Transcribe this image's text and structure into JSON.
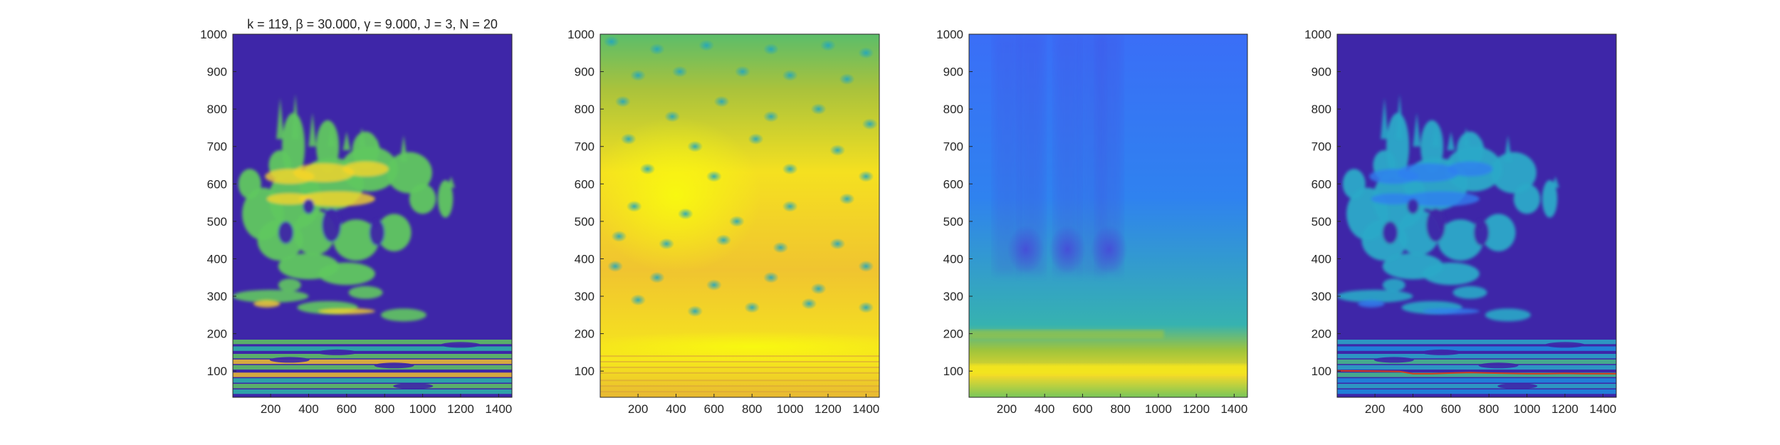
{
  "figure": {
    "background": "#ffffff",
    "colormap": "parula",
    "panel_count": 4
  },
  "chart_data": [
    {
      "type": "heatmap",
      "panel": 1,
      "title": "k = 119, β = 30.000, γ = 9.000, J = 3, N = 20",
      "xlabel": "",
      "ylabel": "",
      "xlim": [
        1,
        1470
      ],
      "ylim": [
        30,
        1000
      ],
      "xticks": [
        200,
        400,
        600,
        800,
        1000,
        1200,
        1400
      ],
      "yticks": [
        100,
        200,
        300,
        400,
        500,
        600,
        700,
        800,
        900,
        1000
      ],
      "colors": {
        "background": "#3e26a8",
        "accent": "#f9fb0e"
      },
      "description_values": {
        "bands_y": [
          55,
          75,
          100,
          125,
          150,
          180
        ],
        "cloud_center": [
          550,
          600
        ],
        "background_level": 0
      }
    },
    {
      "type": "heatmap",
      "panel": 2,
      "title": "",
      "xlabel": "",
      "ylabel": "",
      "xlim": [
        1,
        1470
      ],
      "ylim": [
        30,
        1000
      ],
      "xticks": [
        200,
        400,
        600,
        800,
        1000,
        1200,
        1400
      ],
      "yticks": [
        100,
        200,
        300,
        400,
        500,
        600,
        700,
        800,
        900,
        1000
      ],
      "colors": {
        "dominant": "#f1c02e",
        "spots": "#2cb7a8"
      },
      "description_values": {
        "bright_region_center": [
          400,
          570
        ],
        "band_y": [
          150,
          180
        ]
      }
    },
    {
      "type": "heatmap",
      "panel": 3,
      "title": "",
      "xlabel": "",
      "ylabel": "",
      "xlim": [
        1,
        1470
      ],
      "ylim": [
        30,
        1000
      ],
      "xticks": [
        200,
        400,
        600,
        800,
        1000,
        1200,
        1400
      ],
      "yticks": [
        100,
        200,
        300,
        400,
        500,
        600,
        700,
        800,
        900,
        1000
      ],
      "colors": {
        "top": "#3a79f5",
        "bottom": "#f0dd26"
      },
      "description_values": {
        "dark_spots_y": 425,
        "dark_spots_x": [
          300,
          520,
          740
        ],
        "band_y": [
          95,
          115
        ]
      }
    },
    {
      "type": "heatmap",
      "panel": 4,
      "title": "",
      "xlabel": "",
      "ylabel": "",
      "xlim": [
        1,
        1470
      ],
      "ylim": [
        30,
        1000
      ],
      "xticks": [
        200,
        400,
        600,
        800,
        1000,
        1200,
        1400
      ],
      "yticks": [
        100,
        200,
        300,
        400,
        500,
        600,
        700,
        800,
        900,
        1000
      ],
      "colors": {
        "background": "#3e26a8",
        "ridge_line": "#d43c1c"
      },
      "ridge_line": {
        "x": [
          1,
          200,
          330,
          400,
          500,
          620,
          700,
          780,
          900,
          1000,
          1100,
          1200,
          1300,
          1470
        ],
        "y": [
          101,
          100,
          99,
          93,
          93,
          95,
          96,
          95,
          94,
          93,
          93,
          94,
          93,
          93
        ]
      }
    }
  ]
}
